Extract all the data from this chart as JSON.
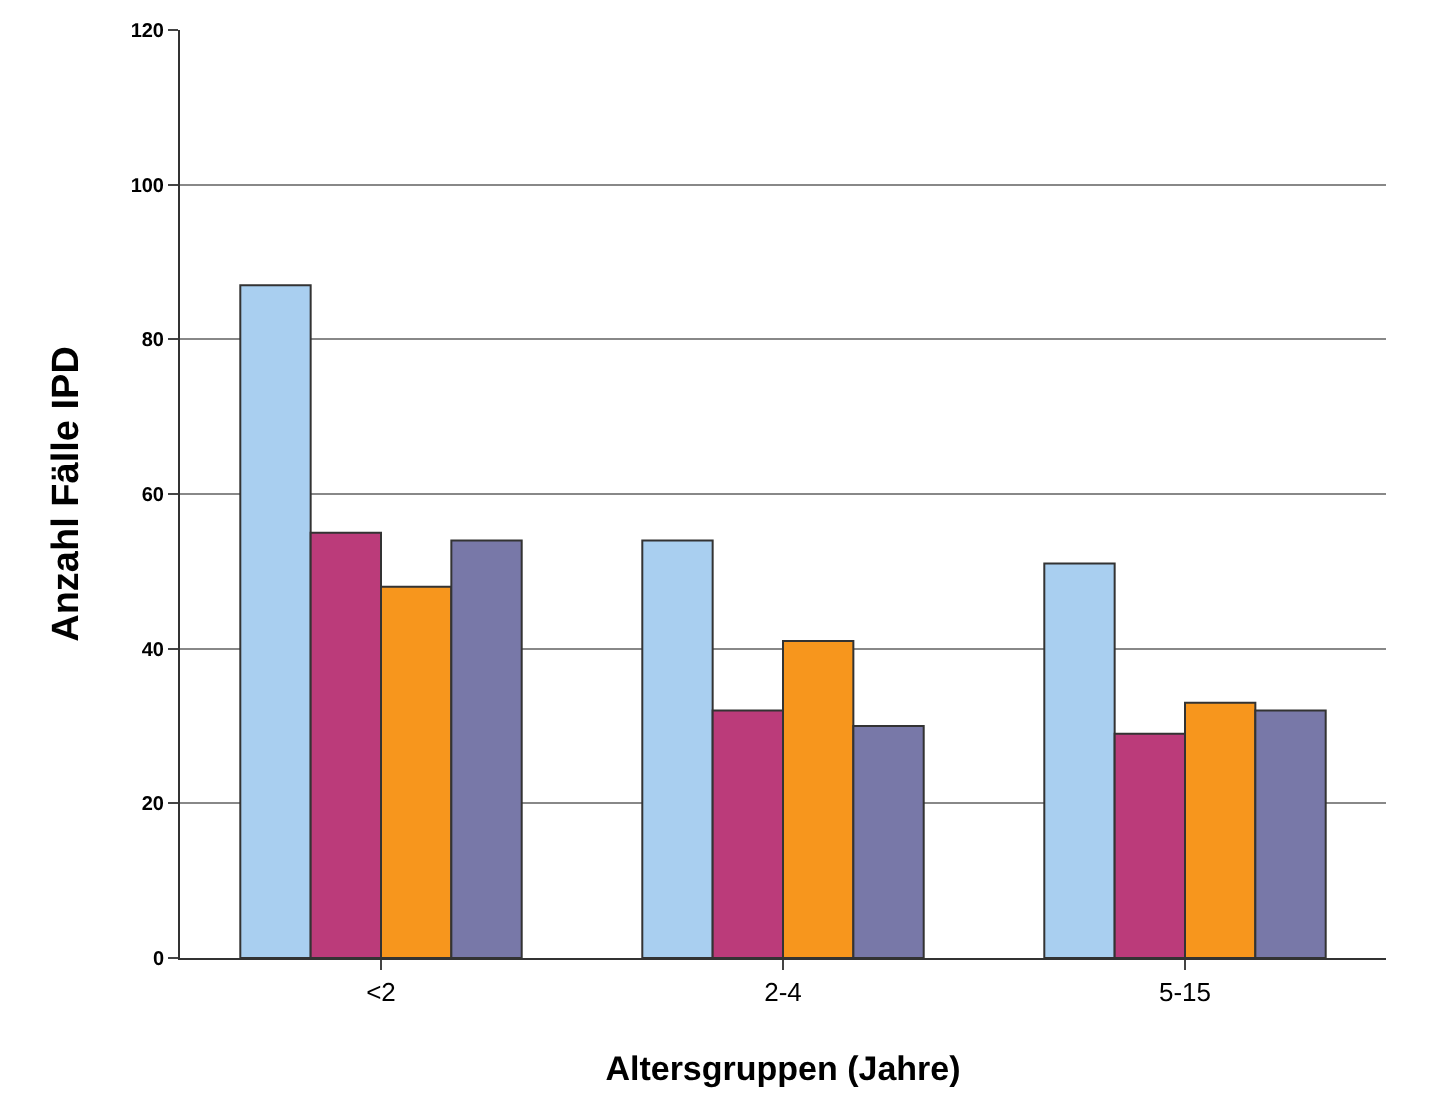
{
  "chart_data": {
    "type": "bar",
    "xlabel": "Altersgruppen (Jahre)",
    "ylabel": "Anzahl Fälle IPD",
    "categories": [
      "<2",
      "2-4",
      "5-15"
    ],
    "series": [
      {
        "color": "#a9cff0",
        "values": [
          87,
          54,
          51
        ]
      },
      {
        "color": "#bb3b7a",
        "values": [
          55,
          32,
          29
        ]
      },
      {
        "color": "#f7961d",
        "values": [
          48,
          41,
          33
        ]
      },
      {
        "color": "#7878a8",
        "values": [
          54,
          30,
          32
        ]
      }
    ],
    "ylim": [
      0,
      120
    ],
    "yticks": [
      0,
      20,
      40,
      60,
      80,
      100,
      120
    ],
    "grid": "y"
  }
}
